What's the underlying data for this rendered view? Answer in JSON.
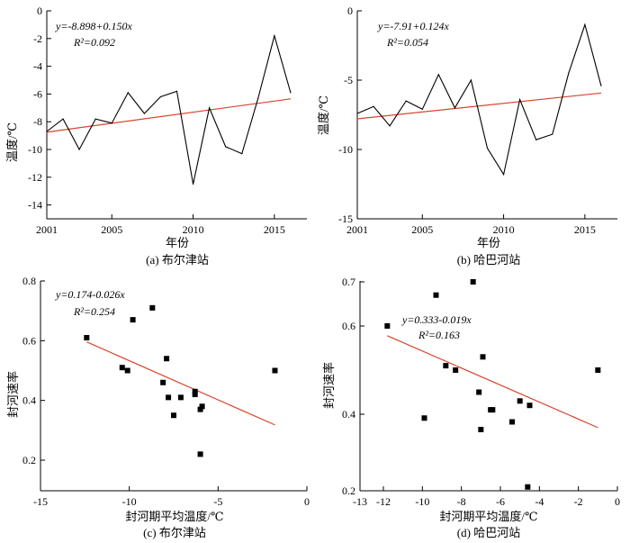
{
  "chart_data": [
    {
      "type": "line",
      "caption": "(a) 布尔津站",
      "xlabel": "年份",
      "ylabel": "温度/℃",
      "xlim": [
        2001,
        2017
      ],
      "ylim": [
        -15,
        0
      ],
      "xticks": [
        2001,
        2005,
        2010,
        2015
      ],
      "yticks": [
        0,
        -2,
        -4,
        -6,
        -8,
        -10,
        -12,
        -14
      ],
      "equation": "y=-8.898+0.150x",
      "r2": "R²=0.092",
      "colors": {
        "series": "#000000",
        "trend": "#d9432b"
      },
      "x": [
        2001,
        2002,
        2003,
        2004,
        2005,
        2006,
        2007,
        2008,
        2009,
        2010,
        2011,
        2012,
        2013,
        2014,
        2015,
        2016
      ],
      "series": [
        {
          "values": [
            -8.7,
            -7.8,
            -10.0,
            -7.8,
            -8.1,
            -5.9,
            -7.4,
            -6.2,
            -5.8,
            -12.5,
            -7.0,
            -9.8,
            -10.3,
            -6.3,
            -1.8,
            -5.9
          ]
        }
      ],
      "trend": {
        "from": [
          2001,
          -8.75
        ],
        "to": [
          2016,
          -6.35
        ]
      }
    },
    {
      "type": "line",
      "caption": "(b) 哈巴河站",
      "xlabel": "年份",
      "ylabel": "温度/℃",
      "xlim": [
        2001,
        2017
      ],
      "ylim": [
        -15,
        0
      ],
      "xticks": [
        2001,
        2005,
        2010,
        2015
      ],
      "yticks": [
        0,
        -5,
        -10,
        -15
      ],
      "equation": "y=-7.91+0.124x",
      "r2": "R²=0.054",
      "colors": {
        "series": "#000000",
        "trend": "#d9432b"
      },
      "x": [
        2001,
        2002,
        2003,
        2004,
        2005,
        2006,
        2007,
        2008,
        2009,
        2010,
        2011,
        2012,
        2013,
        2014,
        2015,
        2016
      ],
      "series": [
        {
          "values": [
            -7.4,
            -6.9,
            -8.3,
            -6.5,
            -7.1,
            -4.6,
            -7.0,
            -5.0,
            -9.9,
            -11.8,
            -6.4,
            -9.3,
            -8.9,
            -4.5,
            -1.0,
            -5.4
          ]
        }
      ],
      "trend": {
        "from": [
          2001,
          -7.79
        ],
        "to": [
          2016,
          -5.93
        ]
      }
    },
    {
      "type": "scatter",
      "caption": "(c) 布尔津站",
      "xlabel": "封河期平均温度/℃",
      "ylabel": "封河速率",
      "xlim": [
        -15,
        0
      ],
      "ylim": [
        0.1,
        0.8
      ],
      "xticks": [
        -15,
        -10,
        -5,
        0
      ],
      "yticks": [
        0.2,
        0.4,
        0.6,
        0.8
      ],
      "equation": "y=0.174-0.026x",
      "r2": "R²=0.254",
      "colors": {
        "points": "#000000",
        "trend": "#d9432b"
      },
      "points": [
        [
          -12.4,
          0.61
        ],
        [
          -10.4,
          0.51
        ],
        [
          -10.1,
          0.5
        ],
        [
          -9.8,
          0.67
        ],
        [
          -8.7,
          0.71
        ],
        [
          -8.1,
          0.46
        ],
        [
          -7.9,
          0.54
        ],
        [
          -7.8,
          0.41
        ],
        [
          -7.5,
          0.35
        ],
        [
          -7.1,
          0.41
        ],
        [
          -6.3,
          0.43
        ],
        [
          -6.3,
          0.42
        ],
        [
          -6.0,
          0.37
        ],
        [
          -5.9,
          0.38
        ],
        [
          -6.0,
          0.22
        ],
        [
          -1.8,
          0.5
        ]
      ],
      "trend": {
        "from": [
          -12.4,
          0.596
        ],
        "to": [
          -1.8,
          0.318
        ]
      }
    },
    {
      "type": "scatter",
      "caption": "(d) 哈巴河站",
      "xlabel": "封河期平均温度/℃",
      "ylabel": "封河速率",
      "xlim": [
        -13,
        0
      ],
      "ylim": [
        0.2,
        0.7
      ],
      "xticks": [
        -13,
        -12,
        -10,
        -8,
        -6,
        -4,
        -2,
        0
      ],
      "yticks": [
        0.2,
        0.4,
        0.6,
        0.7
      ],
      "equation": "y=0.333-0.019x",
      "r2": "R²=0.163",
      "colors": {
        "points": "#000000",
        "trend": "#d9432b"
      },
      "points": [
        [
          -11.8,
          0.6
        ],
        [
          -9.9,
          0.39
        ],
        [
          -9.3,
          0.67
        ],
        [
          -8.8,
          0.51
        ],
        [
          -8.3,
          0.5
        ],
        [
          -7.4,
          0.7
        ],
        [
          -7.1,
          0.45
        ],
        [
          -7.0,
          0.36
        ],
        [
          -6.9,
          0.53
        ],
        [
          -6.5,
          0.41
        ],
        [
          -6.4,
          0.41
        ],
        [
          -5.4,
          0.38
        ],
        [
          -5.0,
          0.43
        ],
        [
          -4.6,
          0.21
        ],
        [
          -4.5,
          0.42
        ],
        [
          -1.0,
          0.5
        ]
      ],
      "trend": {
        "from": [
          -11.8,
          0.578
        ],
        "to": [
          -1.0,
          0.365
        ]
      }
    }
  ]
}
